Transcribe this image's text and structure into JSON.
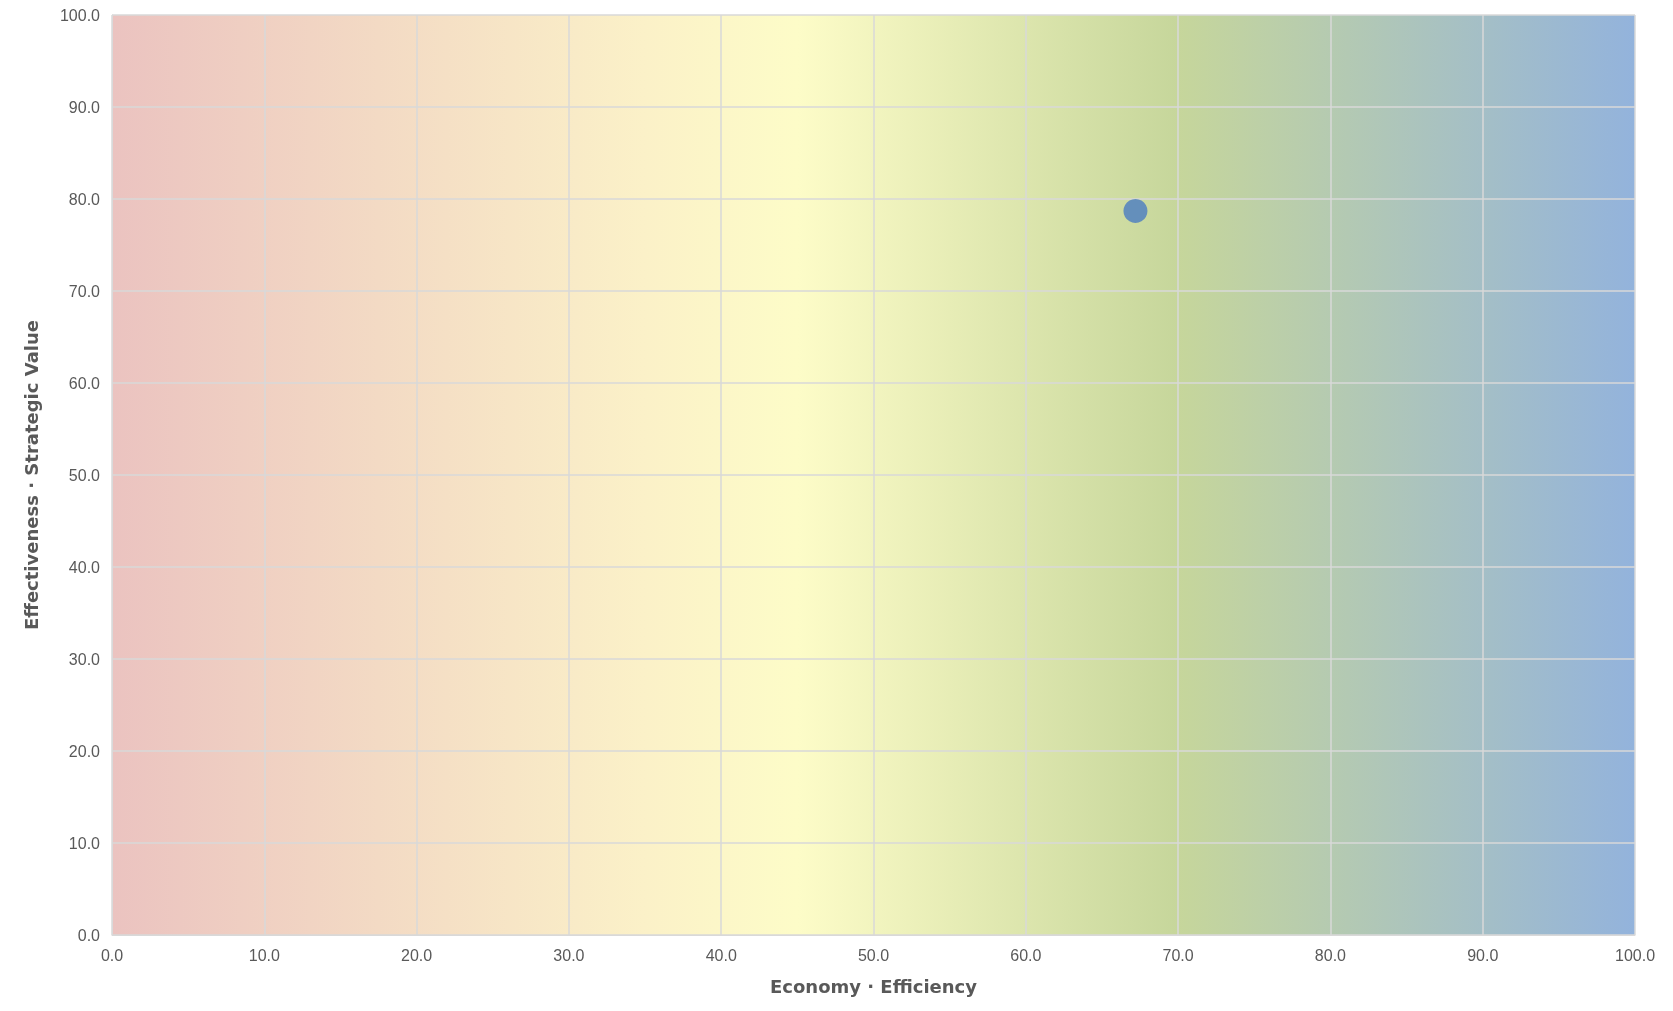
{
  "chart_data": {
    "type": "scatter",
    "xlabel": "Economy · Efficiency",
    "ylabel": "Effectiveness · Strategic Value",
    "x": [
      67.2
    ],
    "series": [
      {
        "color": "#4a7cc2",
        "values": [
          78.7
        ]
      }
    ],
    "xlim": [
      0,
      100
    ],
    "xticks": [
      {
        "value": 0,
        "label": "0.0"
      },
      {
        "value": 10,
        "label": "10.0"
      },
      {
        "value": 20,
        "label": "20.0"
      },
      {
        "value": 30,
        "label": "30.0"
      },
      {
        "value": 40,
        "label": "40.0"
      },
      {
        "value": 50,
        "label": "50.0"
      },
      {
        "value": 60,
        "label": "60.0"
      },
      {
        "value": 70,
        "label": "70.0"
      },
      {
        "value": 80,
        "label": "80.0"
      },
      {
        "value": 90,
        "label": "90.0"
      },
      {
        "value": 100,
        "label": "100.0"
      }
    ],
    "ylim": [
      0,
      100
    ],
    "yticks": [
      {
        "value": 0,
        "label": "0.0"
      },
      {
        "value": 10,
        "label": "10.0"
      },
      {
        "value": 20,
        "label": "20.0"
      },
      {
        "value": 30,
        "label": "30.0"
      },
      {
        "value": 40,
        "label": "40.0"
      },
      {
        "value": 50,
        "label": "50.0"
      },
      {
        "value": 60,
        "label": "60.0"
      },
      {
        "value": 70,
        "label": "70.0"
      },
      {
        "value": 80,
        "label": "80.0"
      },
      {
        "value": 90,
        "label": "90.0"
      },
      {
        "value": 100,
        "label": "100.0"
      }
    ],
    "grid": true,
    "marker": "circle"
  }
}
